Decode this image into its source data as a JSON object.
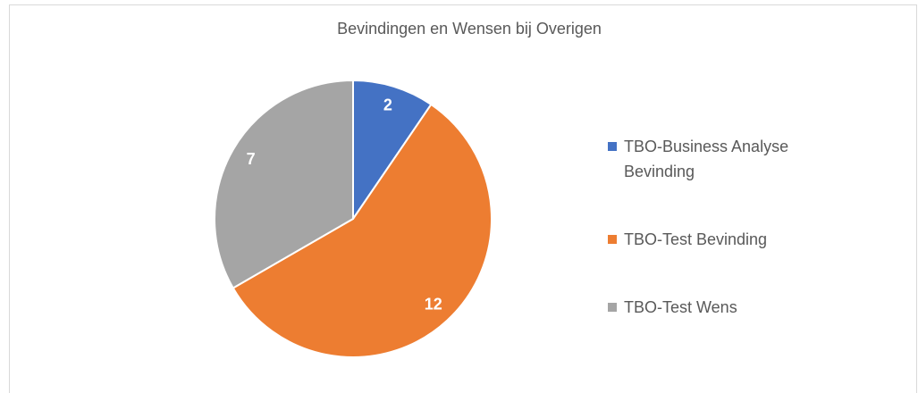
{
  "chart_data": {
    "type": "pie",
    "title": "Bevindingen en Wensen bij Overigen",
    "categories": [
      "TBO-Business Analyse Bevinding",
      "TBO-Test Bevinding",
      "TBO-Test Wens"
    ],
    "values": [
      2,
      12,
      7
    ],
    "colors": [
      "#4472c4",
      "#ed7d31",
      "#a5a5a5"
    ],
    "legend": "right"
  }
}
